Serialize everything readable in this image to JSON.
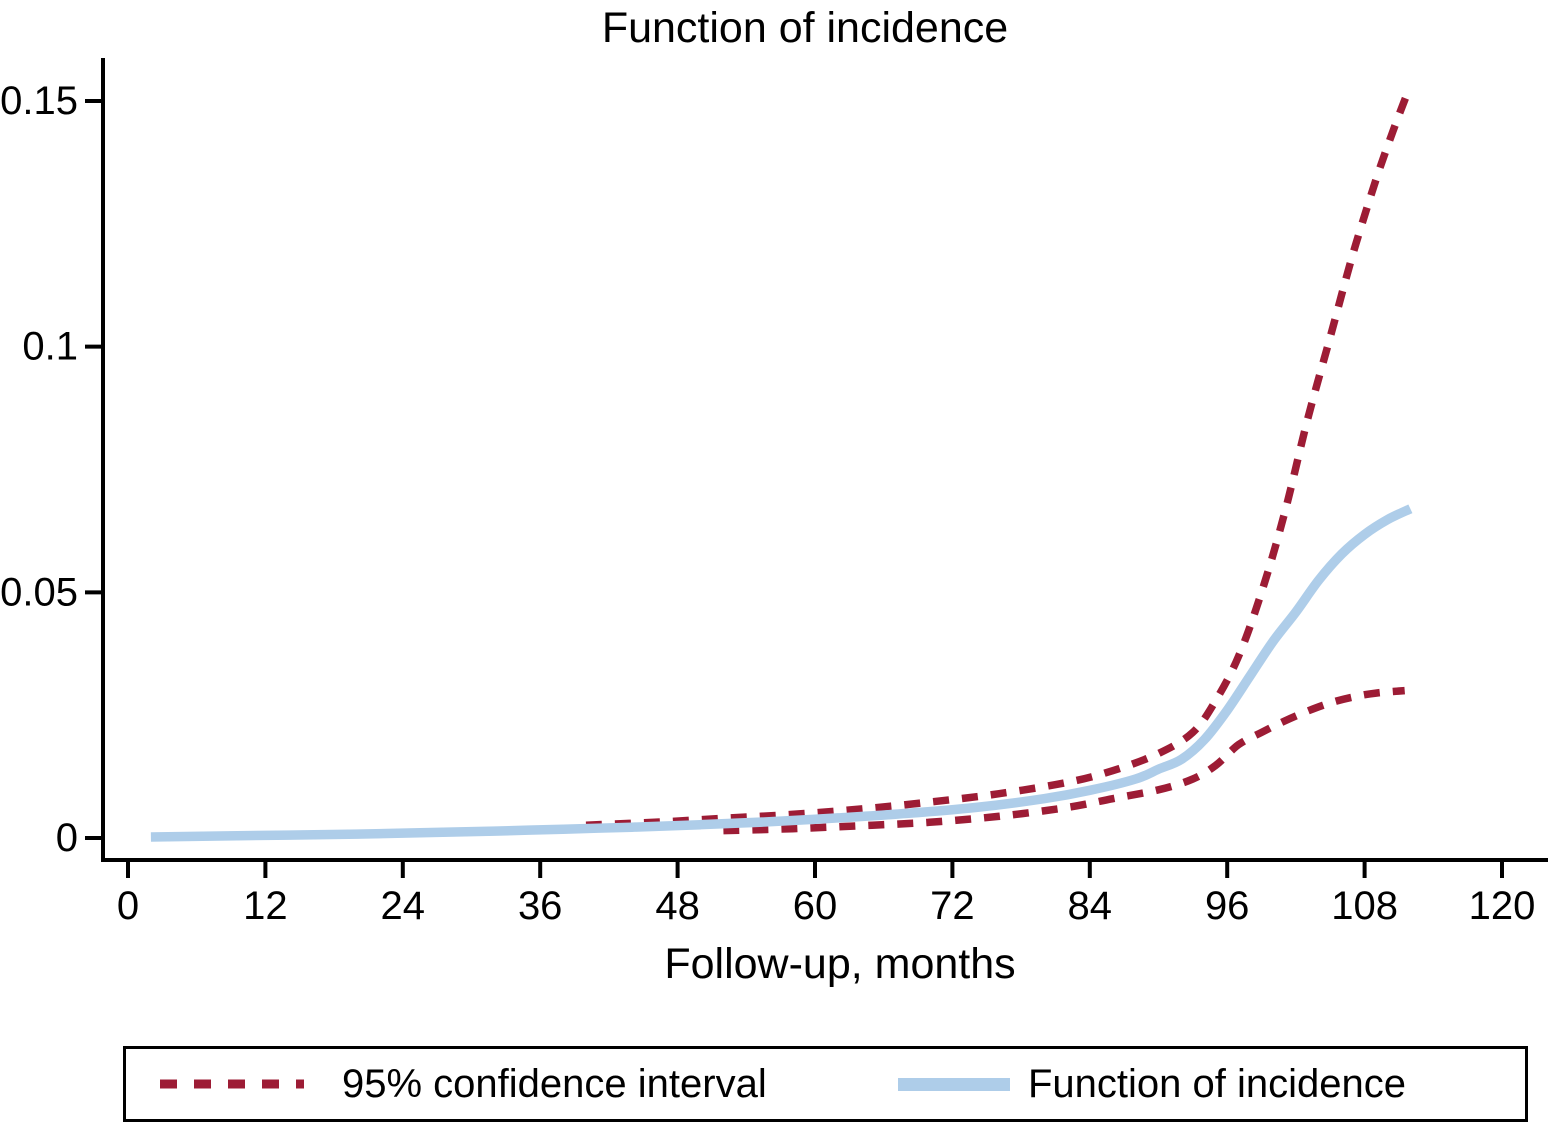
{
  "title": "Function of incidence",
  "xlabel": "Follow-up, months",
  "colors": {
    "ci": "#9d1c35",
    "incidence": "#aecde9",
    "axis": "#000000",
    "background": "#ffffff"
  },
  "legend": {
    "items": [
      {
        "label": "95% confidence interval",
        "style": "dashed",
        "color": "#9d1c35"
      },
      {
        "label": "Function of incidence",
        "style": "solid",
        "color": "#aecde9"
      }
    ]
  },
  "chart_data": {
    "type": "line",
    "title": "Function of incidence",
    "xlabel": "Follow-up, months",
    "ylabel": "",
    "xlim": [
      0,
      120
    ],
    "ylim": [
      0,
      0.155
    ],
    "grid": false,
    "legend_position": "bottom",
    "x_ticks": [
      0,
      12,
      24,
      36,
      48,
      60,
      72,
      84,
      96,
      108,
      120
    ],
    "x_tick_labels": [
      "0",
      "12",
      "24",
      "36",
      "48",
      "60",
      "72",
      "84",
      "96",
      "108",
      "120"
    ],
    "y_ticks": [
      0,
      0.05,
      0.1,
      0.15
    ],
    "y_tick_labels": [
      "0",
      "0.05",
      "0.1",
      "0.15"
    ],
    "series": [
      {
        "name": "95% CI upper",
        "style": "dashed",
        "color": "#9d1c35",
        "points": [
          [
            40,
            0.0026
          ],
          [
            46,
            0.0032
          ],
          [
            52,
            0.004
          ],
          [
            58,
            0.0048
          ],
          [
            64,
            0.0059
          ],
          [
            70,
            0.0073
          ],
          [
            76,
            0.009
          ],
          [
            82,
            0.0113
          ],
          [
            86,
            0.0137
          ],
          [
            90,
            0.0172
          ],
          [
            93,
            0.0215
          ],
          [
            95,
            0.028
          ],
          [
            97,
            0.037
          ],
          [
            99,
            0.05
          ],
          [
            101,
            0.066
          ],
          [
            103,
            0.085
          ],
          [
            105,
            0.102
          ],
          [
            107,
            0.119
          ],
          [
            109,
            0.134
          ],
          [
            110.5,
            0.144
          ],
          [
            111.8,
            0.152
          ]
        ]
      },
      {
        "name": "95% CI lower",
        "style": "dashed",
        "color": "#9d1c35",
        "points": [
          [
            52,
            0.0015
          ],
          [
            58,
            0.0019
          ],
          [
            64,
            0.0025
          ],
          [
            70,
            0.0032
          ],
          [
            76,
            0.0044
          ],
          [
            82,
            0.0062
          ],
          [
            86,
            0.008
          ],
          [
            90,
            0.0098
          ],
          [
            93,
            0.012
          ],
          [
            95,
            0.0148
          ],
          [
            97,
            0.019
          ],
          [
            99,
            0.0215
          ],
          [
            101,
            0.0238
          ],
          [
            103,
            0.0258
          ],
          [
            105,
            0.0275
          ],
          [
            107,
            0.0287
          ],
          [
            109,
            0.0295
          ],
          [
            111.5,
            0.03
          ]
        ]
      },
      {
        "name": "Function of incidence",
        "style": "solid",
        "color": "#aecde9",
        "points": [
          [
            2,
            0.0002
          ],
          [
            8,
            0.0004
          ],
          [
            14,
            0.0006
          ],
          [
            20,
            0.0008
          ],
          [
            26,
            0.0011
          ],
          [
            32,
            0.0014
          ],
          [
            38,
            0.0018
          ],
          [
            44,
            0.0022
          ],
          [
            50,
            0.0027
          ],
          [
            56,
            0.0033
          ],
          [
            62,
            0.0041
          ],
          [
            68,
            0.005
          ],
          [
            74,
            0.0062
          ],
          [
            80,
            0.008
          ],
          [
            84,
            0.0097
          ],
          [
            88,
            0.012
          ],
          [
            90,
            0.014
          ],
          [
            92,
            0.016
          ],
          [
            94,
            0.02
          ],
          [
            96,
            0.026
          ],
          [
            98,
            0.033
          ],
          [
            100,
            0.04
          ],
          [
            102,
            0.046
          ],
          [
            104,
            0.0525
          ],
          [
            106,
            0.0578
          ],
          [
            108,
            0.0618
          ],
          [
            110,
            0.0648
          ],
          [
            112,
            0.067
          ]
        ]
      }
    ]
  }
}
